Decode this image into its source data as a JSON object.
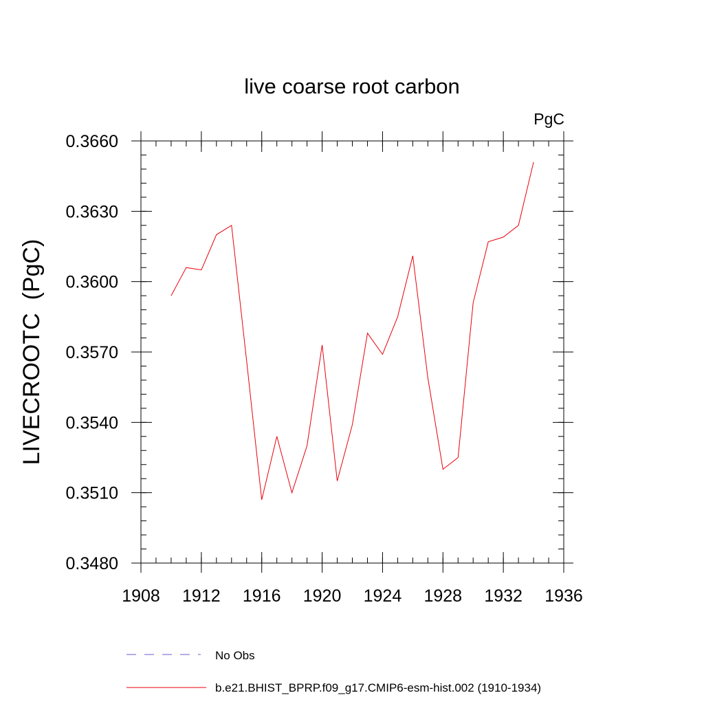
{
  "chart_data": {
    "type": "line",
    "title": "live coarse root carbon",
    "units_label": "PgC",
    "xlabel": "",
    "ylabel": "LIVECROOTC  (PgC)",
    "xlim": [
      1908,
      1936
    ],
    "ylim": [
      0.348,
      0.366
    ],
    "x_major_ticks": [
      1908,
      1912,
      1916,
      1920,
      1924,
      1928,
      1932,
      1936
    ],
    "x_tick_labels": [
      "1908",
      "1912",
      "1916",
      "1920",
      "1924",
      "1928",
      "1932",
      "1936"
    ],
    "x_minor_step": 1,
    "y_major_ticks": [
      0.348,
      0.351,
      0.354,
      0.357,
      0.36,
      0.363,
      0.366
    ],
    "y_tick_labels": [
      "0.3480",
      "0.3510",
      "0.3540",
      "0.3570",
      "0.3600",
      "0.3630",
      "0.3660"
    ],
    "y_minor_step": 0.0006,
    "grid": false,
    "series": [
      {
        "name": "b.e21.BHIST_BPRP.f09_g17.CMIP6-esm-hist.002 (1910-1934)",
        "color": "#e8000b",
        "dash": "solid",
        "x": [
          1910,
          1911,
          1912,
          1913,
          1914,
          1915,
          1916,
          1917,
          1918,
          1919,
          1920,
          1921,
          1922,
          1923,
          1924,
          1925,
          1926,
          1927,
          1928,
          1929,
          1930,
          1931,
          1932,
          1933,
          1934
        ],
        "values": [
          0.3594,
          0.3606,
          0.3605,
          0.362,
          0.3624,
          0.3566,
          0.3507,
          0.3534,
          0.351,
          0.353,
          0.3573,
          0.3515,
          0.3539,
          0.3578,
          0.3569,
          0.3585,
          0.3611,
          0.3559,
          0.352,
          0.3525,
          0.3591,
          0.3617,
          0.3619,
          0.3624,
          0.3651
        ]
      }
    ],
    "legend": {
      "position": "bottom",
      "entries": [
        {
          "label": "No Obs",
          "color": "#6a5acd",
          "dash": "dashed"
        },
        {
          "label": "b.e21.BHIST_BPRP.f09_g17.CMIP6-esm-hist.002 (1910-1934)",
          "color": "#e8000b",
          "dash": "solid"
        }
      ]
    }
  }
}
